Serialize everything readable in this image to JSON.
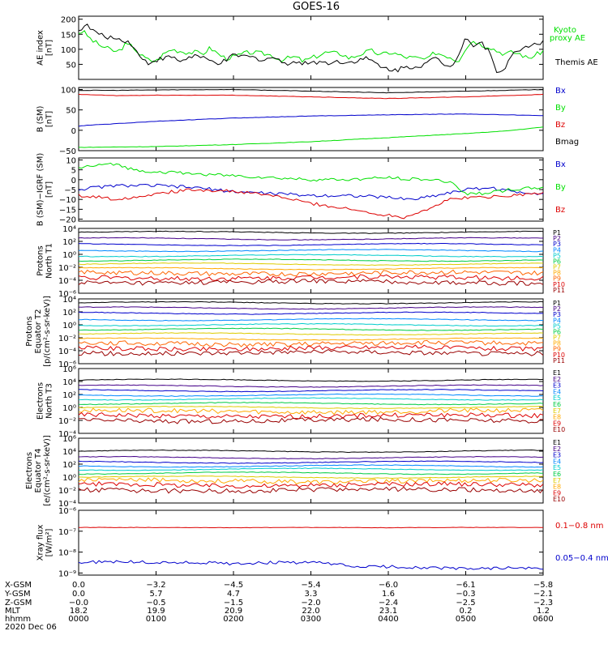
{
  "title": "GOES-16",
  "chart_data": [
    {
      "type": "line",
      "ylabel": "AE index\n[nT]",
      "ylim": [
        0,
        210
      ],
      "yticks": [
        "200",
        "150",
        "100",
        "50"
      ],
      "ytick_values": [
        200,
        150,
        100,
        50
      ],
      "log": false,
      "legend": [
        "Kyoto\nproxy AE",
        "Themis AE"
      ],
      "series": [
        {
          "name": "Kyoto proxy AE",
          "color": "#00e000",
          "x": [
            0,
            0.05,
            0.1,
            0.15,
            0.2,
            0.3,
            0.4,
            0.5,
            0.6,
            0.7,
            0.8,
            0.9,
            1.0,
            1.1,
            1.2,
            1.3,
            1.4,
            1.5,
            1.6,
            1.7,
            1.8,
            1.9,
            2.0,
            2.2,
            2.4,
            2.5,
            2.6,
            2.7,
            2.8,
            2.9,
            3.0,
            3.2,
            3.4,
            3.5,
            3.6,
            3.7,
            3.8,
            3.9,
            4.0,
            4.1,
            4.2,
            4.4,
            4.5,
            4.6,
            4.8,
            4.9,
            5.0,
            5.1,
            5.2,
            5.3,
            5.4,
            5.5,
            5.6,
            5.7,
            5.8,
            5.9,
            6.0
          ],
          "y": [
            155,
            160,
            150,
            135,
            125,
            110,
            100,
            90,
            115,
            110,
            80,
            65,
            60,
            85,
            100,
            95,
            90,
            90,
            85,
            105,
            85,
            70,
            75,
            90,
            85,
            80,
            65,
            70,
            75,
            60,
            70,
            90,
            85,
            70,
            80,
            90,
            95,
            80,
            90,
            85,
            75,
            70,
            65,
            90,
            75,
            60,
            105,
            130,
            115,
            110,
            95,
            85,
            90,
            85,
            70,
            80,
            95
          ]
        },
        {
          "name": "Themis AE",
          "color": "#000000",
          "x": [
            0,
            0.05,
            0.1,
            0.15,
            0.2,
            0.3,
            0.4,
            0.5,
            0.6,
            0.7,
            0.8,
            0.9,
            1.0,
            1.1,
            1.2,
            1.3,
            1.4,
            1.5,
            1.6,
            1.7,
            1.8,
            1.9,
            2.0,
            2.2,
            2.4,
            2.5,
            2.6,
            2.7,
            2.8,
            2.9,
            3.0,
            3.2,
            3.4,
            3.5,
            3.6,
            3.7,
            3.8,
            3.9,
            4.0,
            4.1,
            4.2,
            4.4,
            4.5,
            4.6,
            4.8,
            4.9,
            5.0,
            5.1,
            5.2,
            5.3,
            5.4,
            5.5,
            5.6,
            5.7,
            5.8,
            5.9,
            6.0
          ],
          "y": [
            160,
            175,
            180,
            170,
            160,
            145,
            140,
            135,
            130,
            115,
            70,
            55,
            65,
            70,
            75,
            60,
            70,
            80,
            70,
            60,
            55,
            60,
            80,
            75,
            65,
            75,
            60,
            55,
            60,
            50,
            60,
            55,
            60,
            55,
            65,
            70,
            60,
            40,
            35,
            30,
            40,
            45,
            55,
            70,
            40,
            80,
            145,
            110,
            125,
            90,
            30,
            35,
            80,
            100,
            110,
            120,
            125
          ]
        }
      ]
    },
    {
      "type": "line",
      "ylabel": "B (SM)\n[nT]",
      "ylim": [
        -50,
        105
      ],
      "yticks": [
        "100",
        "50",
        "0",
        "−50"
      ],
      "ytick_values": [
        100,
        50,
        0,
        -50
      ],
      "log": false,
      "legend": [
        "Bx",
        "By",
        "Bz",
        "Bmag"
      ],
      "series": [
        {
          "name": "Bx",
          "color": "#0000cc",
          "x": [
            0,
            0.1,
            1,
            2,
            3,
            4,
            5,
            5.5,
            6
          ],
          "y": [
            10,
            12,
            22,
            30,
            35,
            38,
            40,
            38,
            36
          ]
        },
        {
          "name": "By",
          "color": "#00e000",
          "x": [
            0,
            1,
            2,
            3,
            4,
            5,
            5.5,
            6
          ],
          "y": [
            -42,
            -40,
            -35,
            -28,
            -18,
            -8,
            -2,
            8
          ]
        },
        {
          "name": "Bz",
          "color": "#dd0000",
          "x": [
            0,
            0.5,
            1,
            2,
            3,
            4,
            5,
            5.5,
            6
          ],
          "y": [
            88,
            85,
            86,
            86,
            82,
            78,
            82,
            85,
            88
          ]
        },
        {
          "name": "Bmag",
          "color": "#000000",
          "x": [
            0,
            0.5,
            1,
            2,
            3,
            4,
            5,
            5.5,
            6
          ],
          "y": [
            98,
            98,
            99,
            100,
            96,
            92,
            96,
            98,
            100
          ]
        }
      ]
    },
    {
      "type": "line",
      "ylabel": "B (SM)−IGRF (SM)\n[nT]",
      "ylim": [
        -21,
        11
      ],
      "yticks": [
        "10",
        "5",
        "0",
        "−5",
        "−10",
        "−15",
        "−20"
      ],
      "ytick_values": [
        10,
        5,
        0,
        -5,
        -10,
        -15,
        -20
      ],
      "log": false,
      "legend": [
        "Bx",
        "By",
        "Bz"
      ],
      "series": [
        {
          "name": "Bx",
          "color": "#0000cc",
          "x": [
            0,
            0.2,
            0.5,
            1,
            1.5,
            2,
            2.5,
            3,
            3.5,
            4,
            4.3,
            4.6,
            5,
            5.3,
            5.6,
            6
          ],
          "y": [
            -5,
            -4,
            -3,
            -3,
            -4,
            -6,
            -7,
            -8,
            -8,
            -9,
            -10,
            -8,
            -5,
            -4,
            -6,
            -7
          ]
        },
        {
          "name": "By",
          "color": "#00e000",
          "x": [
            0,
            0.2,
            0.5,
            0.7,
            1,
            1.5,
            2,
            2.5,
            3,
            3.5,
            4,
            4.5,
            4.8,
            5,
            5.2,
            5.4,
            5.6,
            6
          ],
          "y": [
            6,
            7,
            8,
            5,
            4,
            3,
            2,
            1,
            0,
            0,
            1,
            0,
            -1,
            -7,
            -7,
            -6,
            -5,
            -4
          ]
        },
        {
          "name": "Bz",
          "color": "#dd0000",
          "x": [
            0,
            0.3,
            0.5,
            1,
            1.5,
            2,
            2.5,
            3,
            3.5,
            3.8,
            4,
            4.2,
            4.5,
            4.8,
            5,
            5.2,
            5.5,
            6
          ],
          "y": [
            -8,
            -9,
            -10,
            -7,
            -5,
            -6,
            -8,
            -12,
            -15,
            -17,
            -18,
            -19,
            -15,
            -10,
            -9,
            -9,
            -8,
            -7
          ]
        }
      ]
    },
    {
      "type": "line",
      "ylabel": "Protons\nNorth T1",
      "log": true,
      "ylim_exp": [
        -6,
        4
      ],
      "yticks": [
        "10⁴",
        "10²",
        "10⁰",
        "10⁻²",
        "10⁻⁴",
        "10⁻⁶"
      ],
      "ytick_exp": [
        4,
        2,
        0,
        -2,
        -4,
        -6
      ],
      "legend": [
        "P1",
        "P2",
        "P3",
        "P4",
        "P5",
        "P6",
        "P7",
        "P8",
        "P9",
        "P10",
        "P11"
      ],
      "series": [
        {
          "name": "P1",
          "color": "#000000",
          "level": 3.4
        },
        {
          "name": "P2",
          "color": "#440088",
          "level": 2.4
        },
        {
          "name": "P3",
          "color": "#0000cc",
          "level": 1.5
        },
        {
          "name": "P4",
          "color": "#0088ff",
          "level": 0.6
        },
        {
          "name": "P5",
          "color": "#00cccc",
          "level": -0.2
        },
        {
          "name": "P6",
          "color": "#00cc44",
          "level": -0.9
        },
        {
          "name": "P7",
          "color": "#ddcc00",
          "level": -1.5
        },
        {
          "name": "P8",
          "color": "#ffaa00",
          "level": -2.2
        },
        {
          "name": "P9",
          "color": "#ff6600",
          "level": -2.9
        },
        {
          "name": "P10",
          "color": "#dd0000",
          "level": -3.6
        },
        {
          "name": "P11",
          "color": "#990000",
          "level": -4.3
        }
      ]
    },
    {
      "type": "line",
      "ylabel": "Protons\nEquator T2\n[p/(cm²-s-sr-keV)]",
      "log": true,
      "ylim_exp": [
        -6,
        4
      ],
      "yticks": [
        "10⁴",
        "10²",
        "10⁰",
        "10⁻²",
        "10⁻⁴",
        "10⁻⁶"
      ],
      "ytick_exp": [
        4,
        2,
        0,
        -2,
        -4,
        -6
      ],
      "legend": [
        "P1",
        "P2",
        "P3",
        "P4",
        "P5",
        "P6",
        "P7",
        "P8",
        "P9",
        "P10",
        "P11"
      ],
      "series": [
        {
          "name": "P1",
          "color": "#000000",
          "level": 3.4
        },
        {
          "name": "P2",
          "color": "#440088",
          "level": 2.6
        },
        {
          "name": "P3",
          "color": "#0000cc",
          "level": 1.8
        },
        {
          "name": "P4",
          "color": "#0088ff",
          "level": 0.8
        },
        {
          "name": "P5",
          "color": "#00cccc",
          "level": 0.0
        },
        {
          "name": "P6",
          "color": "#00cc44",
          "level": -0.7
        },
        {
          "name": "P7",
          "color": "#ddcc00",
          "level": -1.4
        },
        {
          "name": "P8",
          "color": "#ffaa00",
          "level": -2.2
        },
        {
          "name": "P9",
          "color": "#ff6600",
          "level": -2.9
        },
        {
          "name": "P10",
          "color": "#dd0000",
          "level": -3.6
        },
        {
          "name": "P11",
          "color": "#990000",
          "level": -4.3
        }
      ]
    },
    {
      "type": "line",
      "ylabel": "Electrons\nNorth T3",
      "log": true,
      "ylim_exp": [
        -4,
        6
      ],
      "yticks": [
        "10⁶",
        "10⁴",
        "10²",
        "10⁰",
        "10⁻²",
        "10⁻⁴"
      ],
      "ytick_exp": [
        6,
        4,
        2,
        0,
        -2,
        -4
      ],
      "legend": [
        "E1",
        "E2",
        "E3",
        "E4",
        "E5",
        "E6",
        "E7",
        "E8",
        "E9",
        "E10"
      ],
      "series": [
        {
          "name": "E1",
          "color": "#000000",
          "level": 4.2
        },
        {
          "name": "E2",
          "color": "#440088",
          "level": 3.3
        },
        {
          "name": "E3",
          "color": "#0000cc",
          "level": 2.6
        },
        {
          "name": "E4",
          "color": "#0088ff",
          "level": 1.9
        },
        {
          "name": "E5",
          "color": "#00cccc",
          "level": 1.3
        },
        {
          "name": "E6",
          "color": "#00cc44",
          "level": 0.6
        },
        {
          "name": "E7",
          "color": "#ddcc00",
          "level": 0.0
        },
        {
          "name": "E8",
          "color": "#ffaa00",
          "level": -0.6
        },
        {
          "name": "E9",
          "color": "#dd0000",
          "level": -1.3
        },
        {
          "name": "E10",
          "color": "#990000",
          "level": -2.0
        }
      ]
    },
    {
      "type": "line",
      "ylabel": "Electrons\nEquator T4\n[e/(cm²-s-sr-keV)]",
      "log": true,
      "ylim_exp": [
        -4,
        6
      ],
      "yticks": [
        "10⁶",
        "10⁴",
        "10²",
        "10⁰",
        "10⁻²",
        "10⁻⁴"
      ],
      "ytick_exp": [
        6,
        4,
        2,
        0,
        -2,
        -4
      ],
      "legend": [
        "E1",
        "E2",
        "E3",
        "E4",
        "E5",
        "E6",
        "E7",
        "E8",
        "E9",
        "E10"
      ],
      "series": [
        {
          "name": "E1",
          "color": "#000000",
          "level": 4.0
        },
        {
          "name": "E2",
          "color": "#440088",
          "level": 3.0
        },
        {
          "name": "E3",
          "color": "#0000cc",
          "level": 2.3
        },
        {
          "name": "E4",
          "color": "#0088ff",
          "level": 1.7
        },
        {
          "name": "E5",
          "color": "#00cccc",
          "level": 1.2
        },
        {
          "name": "E6",
          "color": "#00cc44",
          "level": 0.6
        },
        {
          "name": "E7",
          "color": "#ddcc00",
          "level": 0.0
        },
        {
          "name": "E8",
          "color": "#ffaa00",
          "level": -0.6
        },
        {
          "name": "E9",
          "color": "#dd0000",
          "level": -1.2
        },
        {
          "name": "E10",
          "color": "#990000",
          "level": -2.0
        }
      ]
    },
    {
      "type": "line",
      "ylabel": "Xray flux\n[W/m²]",
      "log": true,
      "ylim_exp": [
        -9.1,
        -6
      ],
      "yticks": [
        "10⁻⁶",
        "10⁻⁷",
        "10⁻⁸",
        "10⁻⁹"
      ],
      "ytick_exp": [
        -6,
        -7,
        -8,
        -9
      ],
      "legend": [
        "0.1−0.8 nm",
        "0.05−0.4 nm"
      ],
      "series": [
        {
          "name": "0.1−0.8 nm",
          "color": "#dd0000",
          "x": [
            0,
            1,
            2,
            3,
            4,
            5,
            6
          ],
          "y": [
            -6.82,
            -6.82,
            -6.83,
            -6.82,
            -6.83,
            -6.82,
            -6.82
          ]
        },
        {
          "name": "0.05−0.4 nm",
          "color": "#0000cc",
          "x": [
            0,
            0.5,
            1,
            1.5,
            2,
            2.5,
            3,
            3.3,
            3.5,
            4,
            4.5,
            5,
            5.5,
            6
          ],
          "y": [
            -8.5,
            -8.45,
            -8.5,
            -8.5,
            -8.55,
            -8.5,
            -8.5,
            -8.55,
            -8.7,
            -8.7,
            -8.75,
            -8.8,
            -8.75,
            -8.8
          ]
        }
      ]
    }
  ],
  "xaxis": {
    "row_labels": [
      "X-GSM",
      "Y-GSM",
      "Z-GSM",
      "MLT",
      "hhmm",
      "2020 Dec 06"
    ],
    "columns": [
      [
        "0.0",
        "0.0",
        "−0.0",
        "18.2",
        "0000"
      ],
      [
        "−3.2",
        "5.7",
        "−0.5",
        "19.9",
        "0100"
      ],
      [
        "−4.5",
        "4.7",
        "−1.5",
        "20.9",
        "0200"
      ],
      [
        "−5.4",
        "3.3",
        "−2.0",
        "22.0",
        "0300"
      ],
      [
        "−6.0",
        "1.6",
        "−2.4",
        "23.1",
        "0400"
      ],
      [
        "−6.1",
        "−0.3",
        "−2.5",
        "0.2",
        "0500"
      ],
      [
        "−5.8",
        "−2.1",
        "−2.3",
        "1.2",
        "0600"
      ]
    ]
  },
  "colors": {
    "kyoto": "#00e000",
    "themis": "#000000",
    "bx": "#0000cc",
    "by": "#00e000",
    "bz": "#dd0000",
    "bmag": "#000000"
  }
}
